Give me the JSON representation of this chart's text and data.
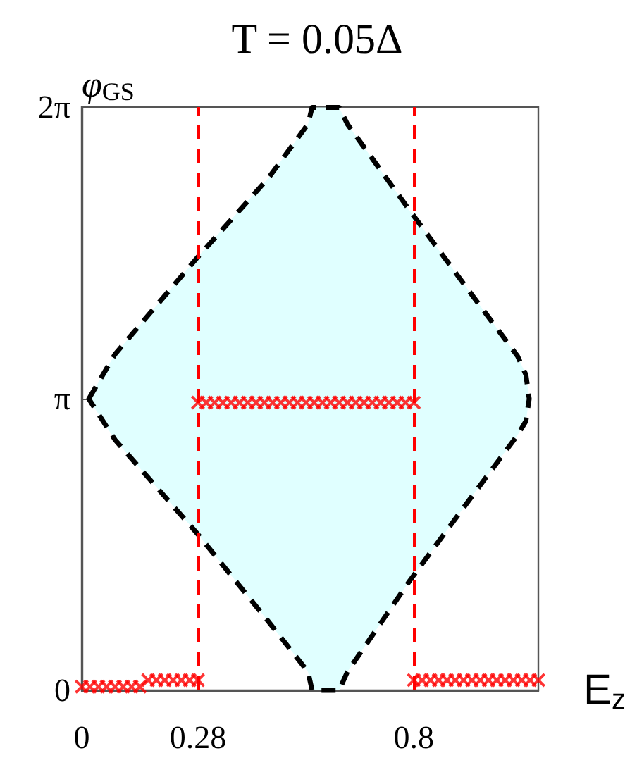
{
  "chart_data": {
    "type": "area",
    "title": "T = 0.05Δ",
    "xlabel": "E$_{z}$",
    "ylabel": "φ$_{GS}$",
    "xlim": [
      0,
      1.1
    ],
    "xticks": [
      0,
      0.28,
      0.8
    ],
    "ylim": [
      0,
      6.2832
    ],
    "yticks": [
      0,
      {
        "value": 3.1416,
        "label": "π"
      },
      {
        "value": 6.2832,
        "label": "2π"
      }
    ],
    "series": [
      {
        "color": "#e0ffff",
        "line_style": "dashed",
        "x": [
          0.017,
          0.08,
          0.28,
          0.45,
          0.545,
          0.555,
          0.62,
          0.64,
          0.79,
          0.94,
          1.05,
          1.07,
          1.078,
          1.07,
          1.05,
          0.94,
          0.79,
          0.64,
          0.62,
          0.555,
          0.545,
          0.45,
          0.28,
          0.08,
          0.017
        ],
        "values": [
          3.14,
          3.62,
          4.67,
          5.52,
          6.1,
          6.28,
          6.28,
          6.1,
          5.17,
          4.26,
          3.6,
          3.4,
          3.14,
          2.9,
          2.75,
          2.09,
          1.18,
          0.2,
          0,
          0,
          0.2,
          0.74,
          1.68,
          2.7,
          3.14
        ]
      },
      {
        "type": "scatter",
        "color": "#ff0000",
        "marker": "cross",
        "x": [
          0,
          0.02,
          0.04,
          0.06,
          0.08,
          0.1,
          0.12,
          0.14,
          0.16,
          0.18,
          0.2,
          0.22,
          0.24,
          0.26,
          0.28,
          0.28,
          0.3,
          0.32,
          0.34,
          0.36,
          0.38,
          0.4,
          0.42,
          0.44,
          0.46,
          0.48,
          0.5,
          0.52,
          0.54,
          0.56,
          0.58,
          0.6,
          0.62,
          0.64,
          0.66,
          0.68,
          0.7,
          0.72,
          0.74,
          0.76,
          0.78,
          0.8,
          0.8,
          0.82,
          0.84,
          0.86,
          0.88,
          0.9,
          0.92,
          0.94,
          0.96,
          0.98,
          1,
          1.02,
          1.04,
          1.06,
          1.08,
          1.1
        ],
        "values": [
          0.04,
          0.04,
          0.04,
          0.04,
          0.04,
          0.04,
          0.04,
          0.04,
          0.11,
          0.11,
          0.11,
          0.11,
          0.11,
          0.11,
          0.11,
          3.1,
          3.1,
          3.1,
          3.1,
          3.1,
          3.1,
          3.1,
          3.1,
          3.1,
          3.1,
          3.1,
          3.1,
          3.1,
          3.1,
          3.1,
          3.1,
          3.1,
          3.1,
          3.1,
          3.1,
          3.1,
          3.1,
          3.1,
          3.1,
          3.1,
          3.1,
          3.1,
          0.11,
          0.11,
          0.11,
          0.11,
          0.11,
          0.11,
          0.11,
          0.11,
          0.11,
          0.11,
          0.11,
          0.11,
          0.11,
          0.11,
          0.11,
          0.11
        ]
      }
    ],
    "ref_lines": [
      {
        "axis": "x",
        "value": 0.28,
        "color": "#ff0000",
        "line_style": "dashed"
      },
      {
        "axis": "x",
        "value": 0.8,
        "color": "#ff0000",
        "line_style": "dashed"
      }
    ]
  }
}
